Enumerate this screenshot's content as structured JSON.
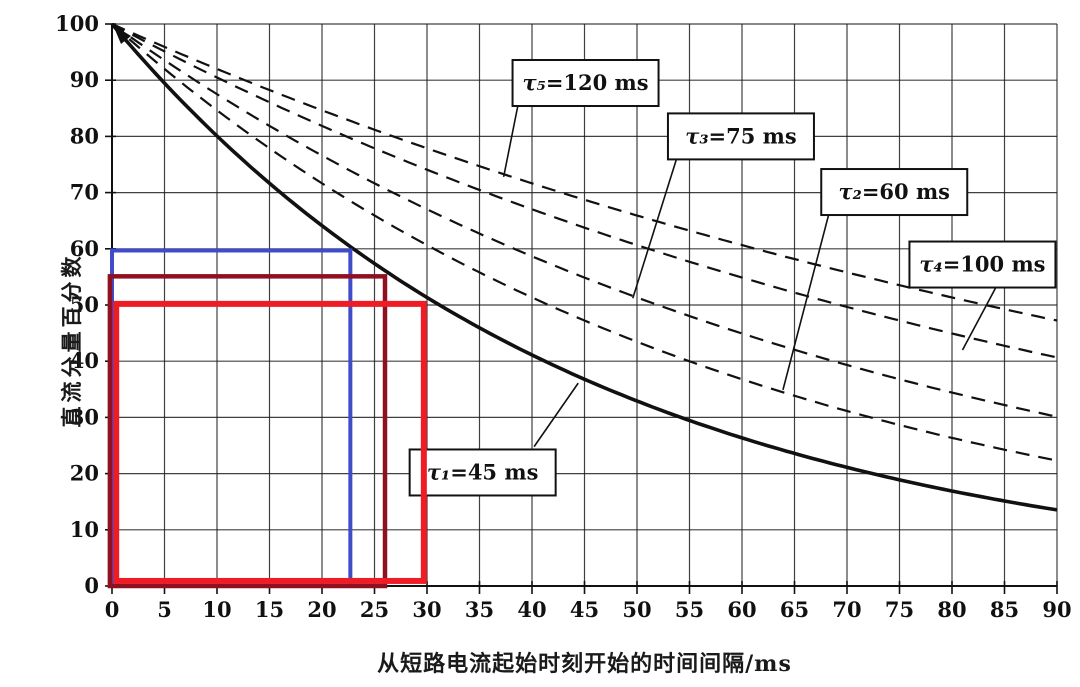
{
  "chart_data": {
    "type": "line",
    "title": "",
    "xlabel": "从短路电流起始时刻开始的时间间隔/ms",
    "ylabel": "直流分量百分数",
    "xlim": [
      0,
      90
    ],
    "ylim": [
      0,
      100
    ],
    "x_ticks": [
      0,
      5,
      10,
      15,
      20,
      25,
      30,
      35,
      40,
      45,
      50,
      55,
      60,
      65,
      70,
      75,
      80,
      85,
      90
    ],
    "y_ticks": [
      0,
      10,
      20,
      30,
      40,
      50,
      60,
      70,
      80,
      90,
      100
    ],
    "grid": true,
    "legend": "none",
    "model": "percent = 100 * exp(-t / tau)",
    "x_samples_ms": [
      0,
      10,
      20,
      30,
      40,
      50,
      60,
      70,
      80,
      90
    ],
    "series": [
      {
        "name": "tau1",
        "tau_ms": 45,
        "line_style": "solid",
        "color": "#111111",
        "values": [
          100,
          80.1,
          64.1,
          51.3,
          41.1,
          32.9,
          26.4,
          21.1,
          16.9,
          13.5
        ],
        "label": {
          "text": "τ₁=45 ms",
          "box_center": {
            "t": 35.3,
            "pct": 20.2
          },
          "leader": {
            "from": {
              "t": 40.2,
              "pct": 24.8
            },
            "to": {
              "t": 44.4,
              "pct": 36.1
            }
          }
        }
      },
      {
        "name": "tau2",
        "tau_ms": 60,
        "line_style": "dashed",
        "color": "#111111",
        "values": [
          100,
          84.6,
          71.7,
          60.7,
          51.3,
          43.5,
          36.8,
          31.1,
          26.4,
          22.3
        ],
        "label": {
          "text": "τ₂=60 ms",
          "box_center": {
            "t": 74.5,
            "pct": 70.1
          },
          "leader": {
            "from": {
              "t": 68.3,
              "pct": 66.4
            },
            "to": {
              "t": 63.9,
              "pct": 34.9
            }
          }
        }
      },
      {
        "name": "tau3",
        "tau_ms": 75,
        "line_style": "dashed",
        "color": "#111111",
        "values": [
          100,
          87.5,
          76.6,
          67.0,
          58.7,
          51.3,
          44.9,
          39.3,
          34.4,
          30.1
        ],
        "label": {
          "text": "τ₃=75 ms",
          "box_center": {
            "t": 59.9,
            "pct": 80.0
          },
          "leader": {
            "from": {
              "t": 53.8,
              "pct": 76.2
            },
            "to": {
              "t": 49.6,
              "pct": 51.2
            }
          }
        }
      },
      {
        "name": "tau4",
        "tau_ms": 100,
        "line_style": "dashed",
        "color": "#111111",
        "values": [
          100,
          90.5,
          81.9,
          74.1,
          67.0,
          60.7,
          54.9,
          49.7,
          44.9,
          40.7
        ],
        "label": {
          "text": "τ₄=100 ms",
          "box_center": {
            "t": 82.9,
            "pct": 57.2
          },
          "leader": {
            "from": {
              "t": 84.2,
              "pct": 53.2
            },
            "to": {
              "t": 81.0,
              "pct": 42.0
            }
          }
        }
      },
      {
        "name": "tau5",
        "tau_ms": 120,
        "line_style": "dashed",
        "color": "#111111",
        "values": [
          100,
          92.0,
          84.6,
          77.9,
          71.7,
          65.9,
          60.7,
          55.8,
          51.3,
          47.2
        ],
        "label": {
          "text": "τ₅=120 ms",
          "box_center": {
            "t": 45.1,
            "pct": 89.5
          },
          "leader": {
            "from": {
              "t": 38.7,
              "pct": 85.9
            },
            "to": {
              "t": 37.3,
              "pct": 72.8
            }
          }
        }
      }
    ],
    "overlay_rectangles": [
      {
        "name": "blue-rectangle",
        "color": "#3f4cc9",
        "t_range": [
          0,
          22.7
        ],
        "pct_range": [
          0,
          59.7
        ],
        "stroke_width": 4
      },
      {
        "name": "dark-red-rectangle",
        "color": "#8e1021",
        "t_range": [
          -0.2,
          26.0
        ],
        "pct_range": [
          0,
          55.1
        ],
        "stroke_width": 4.5
      },
      {
        "name": "red-rectangle",
        "color": "#ee1c25",
        "t_range": [
          0.4,
          29.7
        ],
        "pct_range": [
          0.9,
          50.2
        ],
        "stroke_width": 6
      }
    ],
    "arrow_at_origin": true
  }
}
